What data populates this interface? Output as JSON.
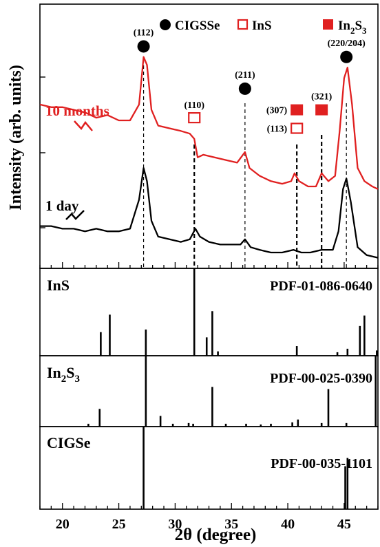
{
  "chart_data": [
    {
      "type": "line",
      "title": "",
      "xlabel": "2θ (degree)",
      "ylabel": "Intensity (arb. units)",
      "xlim": [
        18,
        48
      ],
      "ylim": [
        0,
        100
      ],
      "x_ticks": [
        20,
        25,
        30,
        35,
        40,
        45
      ],
      "grid": false,
      "legend": [
        {
          "label": "CIGSSe",
          "marker": "filled-circle",
          "color": "#000000"
        },
        {
          "label": "InS",
          "marker": "open-square",
          "color": "#e02020"
        },
        {
          "label": "In",
          "label_sub": "2",
          "label_mid": "S",
          "label_sub2": "3",
          "marker": "filled-square",
          "color": "#e02020"
        }
      ],
      "legend_position": "top",
      "series": [
        {
          "name": "10 months",
          "color": "#e02020",
          "points": [
            [
              18,
              62
            ],
            [
              19,
              61
            ],
            [
              20,
              61
            ],
            [
              21,
              60
            ],
            [
              22,
              59
            ],
            [
              23,
              57
            ],
            [
              24,
              58
            ],
            [
              25,
              56
            ],
            [
              26,
              56
            ],
            [
              26.8,
              62
            ],
            [
              27.2,
              80
            ],
            [
              27.5,
              77
            ],
            [
              27.9,
              60
            ],
            [
              28.5,
              54
            ],
            [
              29.5,
              53
            ],
            [
              30.5,
              52
            ],
            [
              31.3,
              51
            ],
            [
              31.7,
              49
            ],
            [
              32.0,
              42
            ],
            [
              32.5,
              43
            ],
            [
              33.5,
              42
            ],
            [
              34.5,
              41
            ],
            [
              35.5,
              40
            ],
            [
              36.2,
              44
            ],
            [
              36.6,
              38
            ],
            [
              37.5,
              35
            ],
            [
              38.5,
              33
            ],
            [
              39.5,
              32
            ],
            [
              40.3,
              33
            ],
            [
              40.6,
              36
            ],
            [
              41.0,
              33
            ],
            [
              41.8,
              31
            ],
            [
              42.5,
              31
            ],
            [
              43.0,
              36
            ],
            [
              43.6,
              33
            ],
            [
              44.2,
              35
            ],
            [
              44.6,
              52
            ],
            [
              45.0,
              72
            ],
            [
              45.3,
              76
            ],
            [
              45.7,
              62
            ],
            [
              46.2,
              38
            ],
            [
              46.8,
              33
            ],
            [
              47.5,
              31
            ],
            [
              48,
              30
            ]
          ]
        },
        {
          "name": "1 day",
          "color": "#000000",
          "points": [
            [
              18,
              16
            ],
            [
              19,
              16
            ],
            [
              20,
              15
            ],
            [
              21,
              15
            ],
            [
              22,
              14
            ],
            [
              23,
              15
            ],
            [
              24,
              14
            ],
            [
              25,
              14
            ],
            [
              26,
              15
            ],
            [
              26.8,
              26
            ],
            [
              27.2,
              38
            ],
            [
              27.5,
              33
            ],
            [
              27.9,
              18
            ],
            [
              28.5,
              12
            ],
            [
              29.5,
              11
            ],
            [
              30.5,
              10
            ],
            [
              31.3,
              11
            ],
            [
              31.8,
              15
            ],
            [
              32.2,
              12
            ],
            [
              33,
              10
            ],
            [
              34,
              9
            ],
            [
              35,
              9
            ],
            [
              35.8,
              9
            ],
            [
              36.2,
              11
            ],
            [
              36.7,
              8
            ],
            [
              37.5,
              7
            ],
            [
              38.5,
              6
            ],
            [
              39.5,
              6
            ],
            [
              40.5,
              7
            ],
            [
              41.2,
              6
            ],
            [
              42,
              6
            ],
            [
              43,
              7
            ],
            [
              44,
              7
            ],
            [
              44.5,
              14
            ],
            [
              44.9,
              30
            ],
            [
              45.2,
              34
            ],
            [
              45.6,
              25
            ],
            [
              46.2,
              8
            ],
            [
              47,
              5
            ],
            [
              48,
              4
            ]
          ]
        }
      ],
      "series_labels": [
        {
          "series": "10 months",
          "text": "10 months"
        },
        {
          "series": "1 day",
          "text": "1 day"
        }
      ],
      "annotations": [
        {
          "label": "(112)",
          "x": 27.2,
          "y_level": 84,
          "marker": "filled-circle"
        },
        {
          "label": "(110)",
          "x": 31.7,
          "y_level": 57,
          "marker": "open-square"
        },
        {
          "label": "(211)",
          "x": 36.2,
          "y_level": 68,
          "marker": "filled-circle"
        },
        {
          "label": "(307)",
          "x": 40.8,
          "y_level": 60,
          "marker": "filled-square"
        },
        {
          "label": "(113)",
          "x": 40.8,
          "y_level": 53,
          "marker": "open-square"
        },
        {
          "label": "(321)",
          "x": 43.0,
          "y_level": 60,
          "marker": "filled-square"
        },
        {
          "label": "(220/204)",
          "x": 45.2,
          "y_level": 80,
          "marker": "filled-circle"
        }
      ],
      "reference_line_x": [
        27.2,
        31.7,
        36.2,
        40.8,
        43.0,
        45.2
      ]
    },
    {
      "type": "bar",
      "title": "InS",
      "reference": "PDF-01-086-0640",
      "xlim": [
        18,
        48
      ],
      "x": [
        23.4,
        24.2,
        27.4,
        31.7,
        32.8,
        33.3,
        33.8,
        40.8,
        44.4,
        45.3,
        46.4,
        46.8,
        47.9
      ],
      "values": [
        27,
        47,
        30,
        100,
        21,
        51,
        5,
        11,
        4,
        8,
        34,
        46,
        6
      ]
    },
    {
      "type": "bar",
      "title": "In",
      "title_sub": "2",
      "title_mid": "S",
      "title_sub2": "3",
      "reference": "PDF-00-025-0390",
      "xlim": [
        18,
        48
      ],
      "x": [
        22.3,
        23.3,
        27.4,
        28.7,
        29.8,
        31.2,
        31.6,
        33.3,
        34.5,
        36.3,
        37.6,
        38.5,
        40.4,
        40.9,
        43.0,
        43.6,
        45.2,
        47.8
      ],
      "values": [
        4,
        25,
        100,
        15,
        4,
        5,
        4,
        56,
        4,
        4,
        3,
        4,
        6,
        10,
        5,
        53,
        5,
        100
      ]
    },
    {
      "type": "bar",
      "title": "CIGSe",
      "reference": "PDF-00-035-1101",
      "xlim": [
        18,
        48
      ],
      "x": [
        27.2,
        45.1,
        45.3
      ],
      "values": [
        100,
        52,
        62
      ]
    }
  ]
}
